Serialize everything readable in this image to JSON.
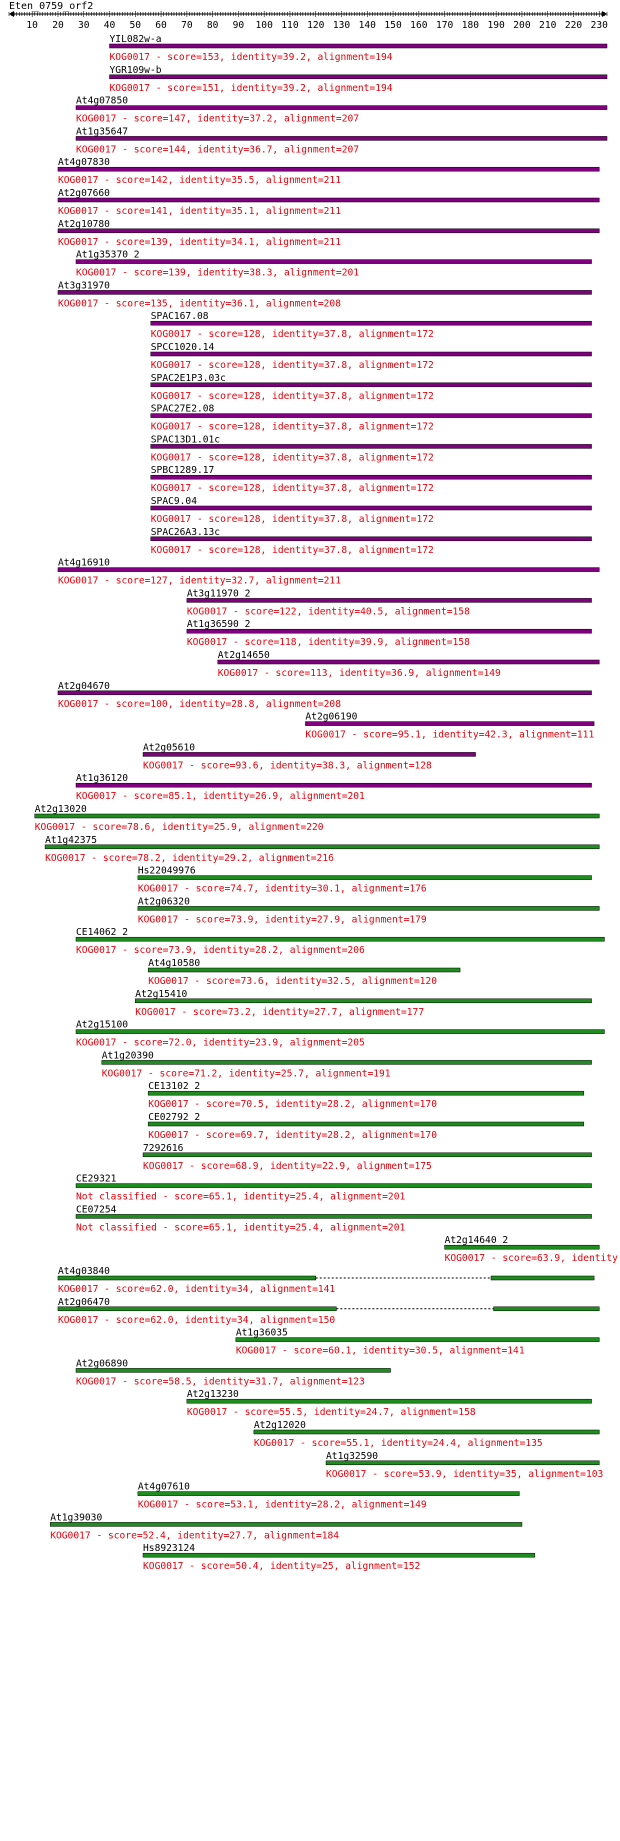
{
  "colors": {
    "purple": "#800080",
    "green": "#1e8c1e",
    "red": "#e8000b",
    "text": "#000000"
  },
  "chart_data": {
    "type": "alignment-track",
    "title": "Eten_0759_orf2",
    "x_ticks": [
      10,
      20,
      30,
      40,
      50,
      60,
      70,
      80,
      90,
      100,
      110,
      120,
      130,
      140,
      150,
      160,
      170,
      180,
      190,
      200,
      210,
      220,
      230
    ],
    "xlim": [
      1,
      233
    ],
    "hits": [
      {
        "name": "YIL082w-a",
        "info": "KOG0017 - score=153, identity=39.2, alignment=194",
        "color": "purple",
        "segments": [
          [
            40,
            233
          ]
        ]
      },
      {
        "name": "YGR109w-b",
        "info": "KOG0017 - score=151, identity=39.2, alignment=194",
        "color": "purple",
        "segments": [
          [
            40,
            233
          ]
        ]
      },
      {
        "name": "At4g07850",
        "info": "KOG0017 - score=147, identity=37.2, alignment=207",
        "color": "purple",
        "segments": [
          [
            27,
            233
          ]
        ]
      },
      {
        "name": "At1g35647",
        "info": "KOG0017 - score=144, identity=36.7, alignment=207",
        "color": "purple",
        "segments": [
          [
            27,
            233
          ]
        ]
      },
      {
        "name": "At4g07830",
        "info": "KOG0017 - score=142, identity=35.5, alignment=211",
        "color": "purple",
        "segments": [
          [
            20,
            230
          ]
        ]
      },
      {
        "name": "At2g07660",
        "info": "KOG0017 - score=141, identity=35.1, alignment=211",
        "color": "purple",
        "segments": [
          [
            20,
            230
          ]
        ]
      },
      {
        "name": "At2g10780",
        "info": "KOG0017 - score=139, identity=34.1, alignment=211",
        "color": "purple",
        "segments": [
          [
            20,
            230
          ]
        ]
      },
      {
        "name": "At1g35370_2",
        "info": "KOG0017 - score=139, identity=38.3, alignment=201",
        "color": "purple",
        "segments": [
          [
            27,
            227
          ]
        ]
      },
      {
        "name": "At3g31970",
        "info": "KOG0017 - score=135, identity=36.1, alignment=208",
        "color": "purple",
        "segments": [
          [
            20,
            227
          ]
        ]
      },
      {
        "name": "SPAC167.08",
        "info": "KOG0017 - score=128, identity=37.8, alignment=172",
        "color": "purple",
        "segments": [
          [
            56,
            227
          ]
        ]
      },
      {
        "name": "SPCC1020.14",
        "info": "KOG0017 - score=128, identity=37.8, alignment=172",
        "color": "purple",
        "segments": [
          [
            56,
            227
          ]
        ]
      },
      {
        "name": "SPAC2E1P3.03c",
        "info": "KOG0017 - score=128, identity=37.8, alignment=172",
        "color": "purple",
        "segments": [
          [
            56,
            227
          ]
        ]
      },
      {
        "name": "SPAC27E2.08",
        "info": "KOG0017 - score=128, identity=37.8, alignment=172",
        "color": "purple",
        "segments": [
          [
            56,
            227
          ]
        ]
      },
      {
        "name": "SPAC13D1.01c",
        "info": "KOG0017 - score=128, identity=37.8, alignment=172",
        "color": "purple",
        "segments": [
          [
            56,
            227
          ]
        ]
      },
      {
        "name": "SPBC1289.17",
        "info": "KOG0017 - score=128, identity=37.8, alignment=172",
        "color": "purple",
        "segments": [
          [
            56,
            227
          ]
        ]
      },
      {
        "name": "SPAC9.04",
        "info": "KOG0017 - score=128, identity=37.8, alignment=172",
        "color": "purple",
        "segments": [
          [
            56,
            227
          ]
        ]
      },
      {
        "name": "SPAC26A3.13c",
        "info": "KOG0017 - score=128, identity=37.8, alignment=172",
        "color": "purple",
        "segments": [
          [
            56,
            227
          ]
        ]
      },
      {
        "name": "At4g16910",
        "info": "KOG0017 - score=127, identity=32.7, alignment=211",
        "color": "purple",
        "segments": [
          [
            20,
            230
          ]
        ]
      },
      {
        "name": "At3g11970_2",
        "info": "KOG0017 - score=122, identity=40.5, alignment=158",
        "color": "purple",
        "segments": [
          [
            70,
            227
          ]
        ]
      },
      {
        "name": "At1g36590_2",
        "info": "KOG0017 - score=118, identity=39.9, alignment=158",
        "color": "purple",
        "segments": [
          [
            70,
            227
          ]
        ]
      },
      {
        "name": "At2g14650",
        "info": "KOG0017 - score=113, identity=36.9, alignment=149",
        "color": "purple",
        "segments": [
          [
            82,
            230
          ]
        ]
      },
      {
        "name": "At2g04670",
        "info": "KOG0017 - score=100, identity=28.8, alignment=208",
        "color": "purple",
        "segments": [
          [
            20,
            227
          ]
        ]
      },
      {
        "name": "At2g06190",
        "info": "KOG0017 - score=95.1, identity=42.3, alignment=111",
        "color": "purple",
        "segments": [
          [
            116,
            228
          ]
        ]
      },
      {
        "name": "At2g05610",
        "info": "KOG0017 - score=93.6, identity=38.3, alignment=128",
        "color": "purple",
        "segments": [
          [
            53,
            182
          ]
        ]
      },
      {
        "name": "At1g36120",
        "info": "KOG0017 - score=85.1, identity=26.9, alignment=201",
        "color": "purple",
        "segments": [
          [
            27,
            227
          ]
        ]
      },
      {
        "name": "At2g13020",
        "info": "KOG0017 - score=78.6, identity=25.9, alignment=220",
        "color": "green",
        "segments": [
          [
            11,
            230
          ]
        ]
      },
      {
        "name": "At1g42375",
        "info": "KOG0017 - score=78.2, identity=29.2, alignment=216",
        "color": "green",
        "segments": [
          [
            15,
            230
          ]
        ]
      },
      {
        "name": "Hs22049976",
        "info": "KOG0017 - score=74.7, identity=30.1, alignment=176",
        "color": "green",
        "segments": [
          [
            51,
            227
          ]
        ]
      },
      {
        "name": "At2g06320",
        "info": "KOG0017 - score=73.9, identity=27.9, alignment=179",
        "color": "green",
        "segments": [
          [
            51,
            230
          ]
        ]
      },
      {
        "name": "CE14062_2",
        "info": "KOG0017 - score=73.9, identity=28.2, alignment=206",
        "color": "green",
        "segments": [
          [
            27,
            232
          ]
        ]
      },
      {
        "name": "At4g10580",
        "info": "KOG0017 - score=73.6, identity=32.5, alignment=120",
        "color": "green",
        "segments": [
          [
            55,
            176
          ]
        ]
      },
      {
        "name": "At2g15410",
        "info": "KOG0017 - score=73.2, identity=27.7, alignment=177",
        "color": "green",
        "segments": [
          [
            50,
            227
          ]
        ]
      },
      {
        "name": "At2g15100",
        "info": "KOG0017 - score=72.0, identity=23.9, alignment=205",
        "color": "green",
        "segments": [
          [
            27,
            232
          ]
        ]
      },
      {
        "name": "At1g20390",
        "info": "KOG0017 - score=71.2, identity=25.7, alignment=191",
        "color": "green",
        "segments": [
          [
            37,
            227
          ]
        ]
      },
      {
        "name": "CE13102_2",
        "info": "KOG0017 - score=70.5, identity=28.2, alignment=170",
        "color": "green",
        "segments": [
          [
            55,
            224
          ]
        ]
      },
      {
        "name": "CE02792_2",
        "info": "KOG0017 - score=69.7, identity=28.2, alignment=170",
        "color": "green",
        "segments": [
          [
            55,
            224
          ]
        ]
      },
      {
        "name": "7292616",
        "info": "KOG0017 - score=68.9, identity=22.9, alignment=175",
        "color": "green",
        "segments": [
          [
            53,
            227
          ]
        ]
      },
      {
        "name": "CE29321",
        "info": "Not classified - score=65.1, identity=25.4, alignment=201",
        "color": "green",
        "segments": [
          [
            27,
            227
          ]
        ]
      },
      {
        "name": "CE07254",
        "info": "Not classified - score=65.1, identity=25.4, alignment=201",
        "color": "green",
        "segments": [
          [
            27,
            227
          ]
        ]
      },
      {
        "name": "At2g14640_2",
        "info": "KOG0017 - score=63.9, identity",
        "color": "green",
        "segments": [
          [
            170,
            230
          ]
        ]
      },
      {
        "name": "At4g03840",
        "info": "KOG0017 - score=62.0, identity=34, alignment=141",
        "color": "green",
        "segments": [
          [
            20,
            120
          ],
          [
            188,
            228
          ]
        ]
      },
      {
        "name": "At2g06470",
        "info": "KOG0017 - score=62.0, identity=34, alignment=150",
        "color": "green",
        "segments": [
          [
            20,
            128
          ],
          [
            189,
            230
          ]
        ]
      },
      {
        "name": "At1g36035",
        "info": "KOG0017 - score=60.1, identity=30.5, alignment=141",
        "color": "green",
        "segments": [
          [
            89,
            230
          ]
        ]
      },
      {
        "name": "At2g06890",
        "info": "KOG0017 - score=58.5, identity=31.7, alignment=123",
        "color": "green",
        "segments": [
          [
            27,
            149
          ]
        ]
      },
      {
        "name": "At2g13230",
        "info": "KOG0017 - score=55.5, identity=24.7, alignment=158",
        "color": "green",
        "segments": [
          [
            70,
            227
          ]
        ]
      },
      {
        "name": "At2g12020",
        "info": "KOG0017 - score=55.1, identity=24.4, alignment=135",
        "color": "green",
        "segments": [
          [
            96,
            230
          ]
        ]
      },
      {
        "name": "At1g32590",
        "info": "KOG0017 - score=53.9, identity=35, alignment=103",
        "color": "green",
        "segments": [
          [
            124,
            230
          ]
        ]
      },
      {
        "name": "At4g07610",
        "info": "KOG0017 - score=53.1, identity=28.2, alignment=149",
        "color": "green",
        "segments": [
          [
            51,
            199
          ]
        ]
      },
      {
        "name": "At1g39030",
        "info": "KOG0017 - score=52.4, identity=27.7, alignment=184",
        "color": "green",
        "segments": [
          [
            17,
            200
          ]
        ]
      },
      {
        "name": "Hs8923124",
        "info": "KOG0017 - score=50.4, identity=25, alignment=152",
        "color": "green",
        "segments": [
          [
            53,
            205
          ]
        ]
      }
    ]
  }
}
